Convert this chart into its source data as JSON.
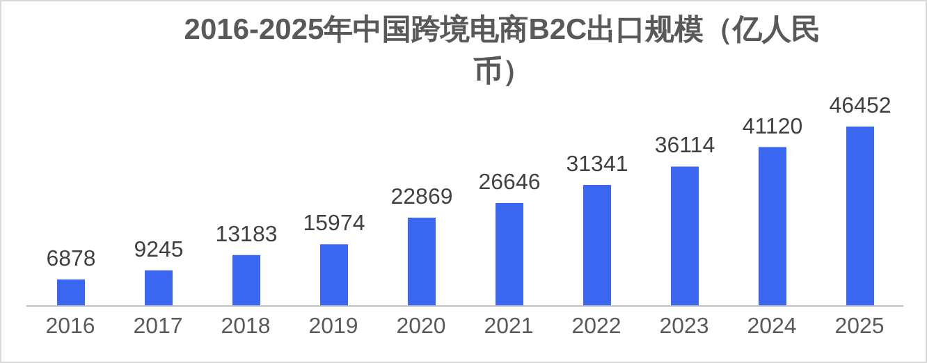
{
  "chart_data": {
    "type": "bar",
    "title": "2016-2025年中国跨境电商B2C出口规模（亿人民币）",
    "categories": [
      "2016",
      "2017",
      "2018",
      "2019",
      "2020",
      "2021",
      "2022",
      "2023",
      "2024",
      "2025"
    ],
    "values": [
      6878,
      9245,
      13183,
      15974,
      22869,
      26646,
      31341,
      36114,
      41120,
      46452
    ],
    "color": "#3b66f0",
    "data_labels": true
  }
}
